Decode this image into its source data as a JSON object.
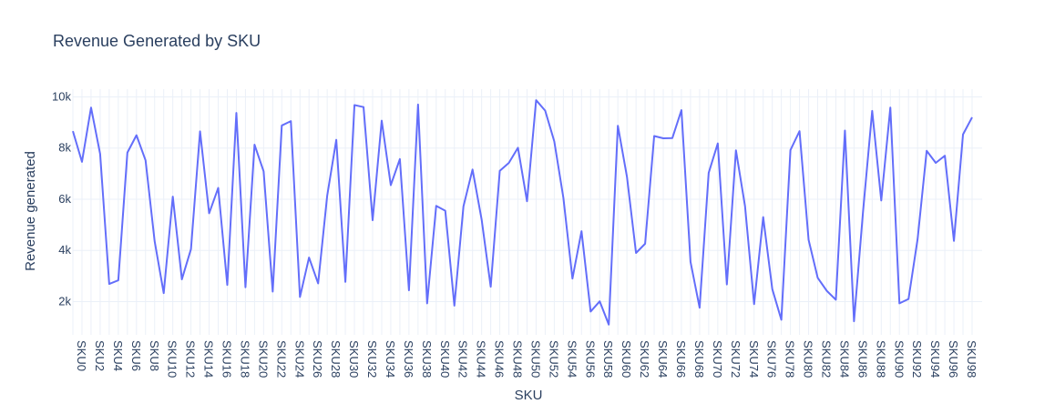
{
  "chart_data": {
    "type": "line",
    "title": "Revenue Generated by SKU",
    "xlabel": "SKU",
    "ylabel": "Revenue generated",
    "ylim": [
      700,
      10300
    ],
    "yticks": [
      2000,
      4000,
      6000,
      8000,
      10000
    ],
    "ytick_labels": [
      "2k",
      "4k",
      "6k",
      "8k",
      "10k"
    ],
    "grid": true,
    "line_color": "#636efa",
    "categories": [
      "SKU0",
      "SKU1",
      "SKU2",
      "SKU3",
      "SKU4",
      "SKU5",
      "SKU6",
      "SKU7",
      "SKU8",
      "SKU9",
      "SKU10",
      "SKU11",
      "SKU12",
      "SKU13",
      "SKU14",
      "SKU15",
      "SKU16",
      "SKU17",
      "SKU18",
      "SKU19",
      "SKU20",
      "SKU21",
      "SKU22",
      "SKU23",
      "SKU24",
      "SKU25",
      "SKU26",
      "SKU27",
      "SKU28",
      "SKU29",
      "SKU30",
      "SKU31",
      "SKU32",
      "SKU33",
      "SKU34",
      "SKU35",
      "SKU36",
      "SKU37",
      "SKU38",
      "SKU39",
      "SKU40",
      "SKU41",
      "SKU42",
      "SKU43",
      "SKU44",
      "SKU45",
      "SKU46",
      "SKU47",
      "SKU48",
      "SKU49",
      "SKU50",
      "SKU51",
      "SKU52",
      "SKU53",
      "SKU54",
      "SKU55",
      "SKU56",
      "SKU57",
      "SKU58",
      "SKU59",
      "SKU60",
      "SKU61",
      "SKU62",
      "SKU63",
      "SKU64",
      "SKU65",
      "SKU66",
      "SKU67",
      "SKU68",
      "SKU69",
      "SKU70",
      "SKU71",
      "SKU72",
      "SKU73",
      "SKU74",
      "SKU75",
      "SKU76",
      "SKU77",
      "SKU78",
      "SKU79",
      "SKU80",
      "SKU81",
      "SKU82",
      "SKU83",
      "SKU84",
      "SKU85",
      "SKU86",
      "SKU87",
      "SKU88",
      "SKU89",
      "SKU90",
      "SKU91",
      "SKU92",
      "SKU93",
      "SKU94",
      "SKU95",
      "SKU96",
      "SKU97",
      "SKU98",
      "SKU99"
    ],
    "tick_labels": [
      "SKU0",
      "SKU2",
      "SKU4",
      "SKU6",
      "SKU8",
      "SKU10",
      "SKU12",
      "SKU14",
      "SKU16",
      "SKU18",
      "SKU20",
      "SKU22",
      "SKU24",
      "SKU26",
      "SKU28",
      "SKU30",
      "SKU32",
      "SKU34",
      "SKU36",
      "SKU38",
      "SKU40",
      "SKU42",
      "SKU44",
      "SKU46",
      "SKU48",
      "SKU50",
      "SKU52",
      "SKU54",
      "SKU56",
      "SKU58",
      "SKU60",
      "SKU62",
      "SKU64",
      "SKU66",
      "SKU68",
      "SKU70",
      "SKU72",
      "SKU74",
      "SKU76",
      "SKU78",
      "SKU80",
      "SKU82",
      "SKU84",
      "SKU86",
      "SKU88",
      "SKU90",
      "SKU92",
      "SKU94",
      "SKU96",
      "SKU98"
    ],
    "values": [
      8660,
      7460,
      9580,
      7770,
      2690,
      2830,
      7820,
      8500,
      7520,
      4360,
      2330,
      6100,
      2870,
      4050,
      8650,
      5450,
      6440,
      2650,
      9370,
      2560,
      8130,
      7090,
      2390,
      8880,
      9050,
      2180,
      3720,
      2710,
      6140,
      8320,
      2770,
      9680,
      9600,
      5180,
      9070,
      6550,
      7570,
      2440,
      9700,
      1930,
      5740,
      5550,
      1840,
      5720,
      7160,
      5210,
      2580,
      7110,
      7420,
      8010,
      5920,
      9870,
      9460,
      8260,
      6060,
      2900,
      4750,
      1610,
      2010,
      1100,
      8870,
      6880,
      3900,
      4260,
      8470,
      8380,
      8390,
      9480,
      3550,
      1760,
      7030,
      8180,
      2670,
      7910,
      5730,
      1900,
      5300,
      2490,
      1290,
      7920,
      8660,
      4410,
      2930,
      2420,
      2070,
      8680,
      1230,
      5540,
      9450,
      5950,
      9580,
      1930,
      2100,
      4440,
      7890,
      7420,
      7700,
      4370,
      8530,
      9200
    ]
  }
}
